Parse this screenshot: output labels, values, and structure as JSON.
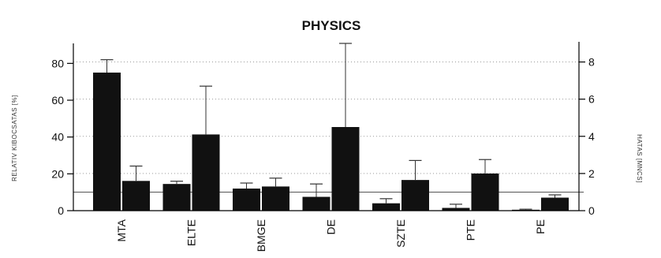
{
  "chart_data": {
    "type": "bar",
    "title": "PHYSICS",
    "categories": [
      "MTA",
      "ELTE",
      "BMGE",
      "DE",
      "SZTE",
      "PTE",
      "PE"
    ],
    "series": [
      {
        "axis": "left",
        "values": [
          75,
          14.5,
          12,
          7.5,
          4,
          1.5,
          0.5
        ],
        "error": [
          7,
          1.5,
          3,
          7,
          2.5,
          2,
          0.3
        ]
      },
      {
        "axis": "right",
        "values": [
          1.6,
          4.1,
          1.3,
          4.5,
          1.65,
          2.0,
          0.7
        ],
        "error": [
          0.8,
          2.6,
          0.45,
          4.5,
          1.05,
          0.75,
          0.15
        ]
      }
    ],
    "ylabel_left": "RELATIV KIBOCSATAS [%]",
    "ylabel_right": "HATAS [MNCS]",
    "ylim_left": [
      0,
      90
    ],
    "ylim_right": [
      0,
      9
    ],
    "yticks_left": [
      0,
      20,
      40,
      60,
      80
    ],
    "yticks_right": [
      0,
      2,
      4,
      6,
      8
    ],
    "reference_line_right": 1,
    "grid": "dotted horizontal",
    "colors": {
      "bar": "#111111",
      "grid": "#9a9a9a",
      "axis": "#000000"
    }
  }
}
